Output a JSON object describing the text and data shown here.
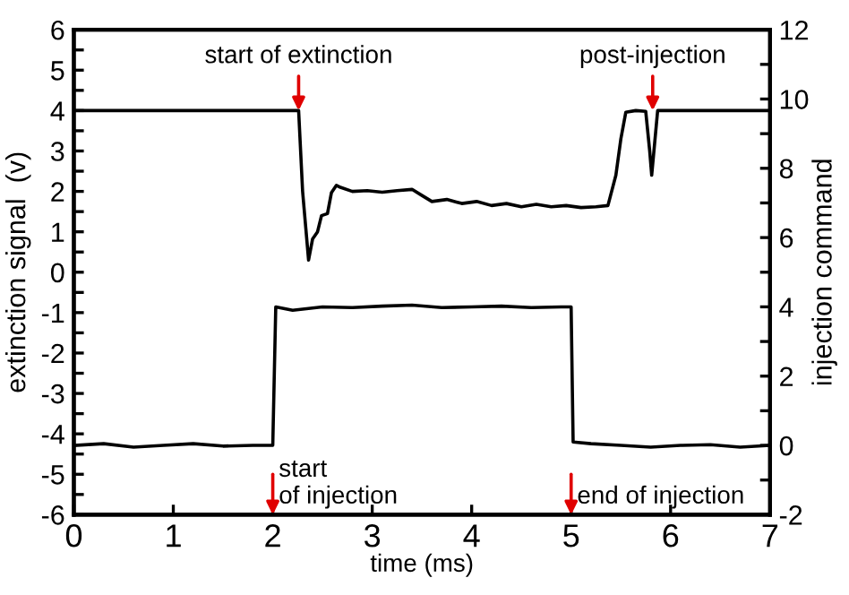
{
  "chart_data": {
    "type": "line",
    "xlabel": "time (ms)",
    "ylabel": "extinction signal  (v)",
    "y2label": "injection command",
    "xlim": [
      0,
      7
    ],
    "xticks": [
      0,
      1,
      2,
      3,
      4,
      5,
      6,
      7
    ],
    "ylim": [
      -6,
      6
    ],
    "yticks": [
      -6,
      {
        "value": -5.5,
        "label": null
      },
      -5,
      {
        "value": -4.5,
        "label": null
      },
      -4,
      {
        "value": -3.5,
        "label": null
      },
      -3,
      {
        "value": -2.5,
        "label": null
      },
      -2,
      {
        "value": -1.5,
        "label": null
      },
      -1,
      {
        "value": -0.5,
        "label": null
      },
      0,
      {
        "value": 0.5,
        "label": null
      },
      1,
      {
        "value": 1.5,
        "label": null
      },
      2,
      {
        "value": 2.5,
        "label": null
      },
      3,
      {
        "value": 3.5,
        "label": null
      },
      4,
      {
        "value": 4.5,
        "label": null
      },
      5,
      {
        "value": 5.5,
        "label": null
      },
      6
    ],
    "y2lim": [
      -2,
      12
    ],
    "y2ticks": [
      -2,
      {
        "value": -1,
        "label": null
      },
      0,
      {
        "value": 1,
        "label": null
      },
      2,
      {
        "value": 3,
        "label": null
      },
      4,
      {
        "value": 5,
        "label": null
      },
      6,
      {
        "value": 7,
        "label": null
      },
      8,
      {
        "value": 9,
        "label": null
      },
      10,
      {
        "value": 11,
        "label": null
      },
      12
    ],
    "grid": false,
    "legend": false,
    "marker": "none",
    "line_style": "solid",
    "series": [
      {
        "color": "#000000",
        "x": [
          0,
          1,
          2,
          2.26,
          2.3,
          2.36,
          2.4,
          2.45,
          2.49,
          2.55,
          2.59,
          2.64,
          2.68,
          2.8,
          2.95,
          3.1,
          3.25,
          3.4,
          3.5,
          3.6,
          3.75,
          3.9,
          4.05,
          4.2,
          4.35,
          4.5,
          4.65,
          4.8,
          4.95,
          5.1,
          5.25,
          5.37,
          5.45,
          5.5,
          5.55,
          5.65,
          5.75,
          5.79,
          5.81,
          5.84,
          5.87,
          6.0,
          6.5,
          7
        ],
        "values": [
          4,
          4,
          4,
          4,
          2.0,
          0.3,
          0.82,
          1.0,
          1.4,
          1.45,
          1.97,
          2.15,
          2.1,
          2.0,
          2.02,
          1.98,
          2.02,
          2.05,
          1.9,
          1.75,
          1.8,
          1.7,
          1.75,
          1.65,
          1.7,
          1.62,
          1.68,
          1.62,
          1.65,
          1.6,
          1.62,
          1.65,
          2.4,
          3.3,
          3.96,
          4,
          3.98,
          3.0,
          2.4,
          3.2,
          4,
          4,
          4,
          4
        ]
      },
      {
        "color": "#000000",
        "axis": "y2",
        "x": [
          0,
          0.3,
          0.6,
          0.9,
          1.2,
          1.5,
          1.8,
          2.0,
          2.03,
          2.2,
          2.5,
          2.8,
          3.1,
          3.4,
          3.7,
          4.0,
          4.3,
          4.6,
          4.9,
          5.0,
          5.02,
          5.2,
          5.5,
          5.8,
          6.1,
          6.4,
          6.7,
          7
        ],
        "values": [
          0,
          0.05,
          -0.05,
          0,
          0.05,
          -0.02,
          0,
          0,
          4,
          3.9,
          4,
          3.98,
          4.02,
          4.05,
          3.98,
          4,
          4.02,
          3.98,
          4,
          4,
          0.1,
          0.05,
          0,
          -0.05,
          0,
          0.02,
          -0.05,
          0
        ]
      }
    ],
    "annotations": [
      {
        "text": "start of extinction",
        "x": 2.26,
        "y": 4
      },
      {
        "text": "post-injection",
        "x": 5.82,
        "y": 4
      },
      "start\nof injection",
      "end of injection"
    ]
  }
}
